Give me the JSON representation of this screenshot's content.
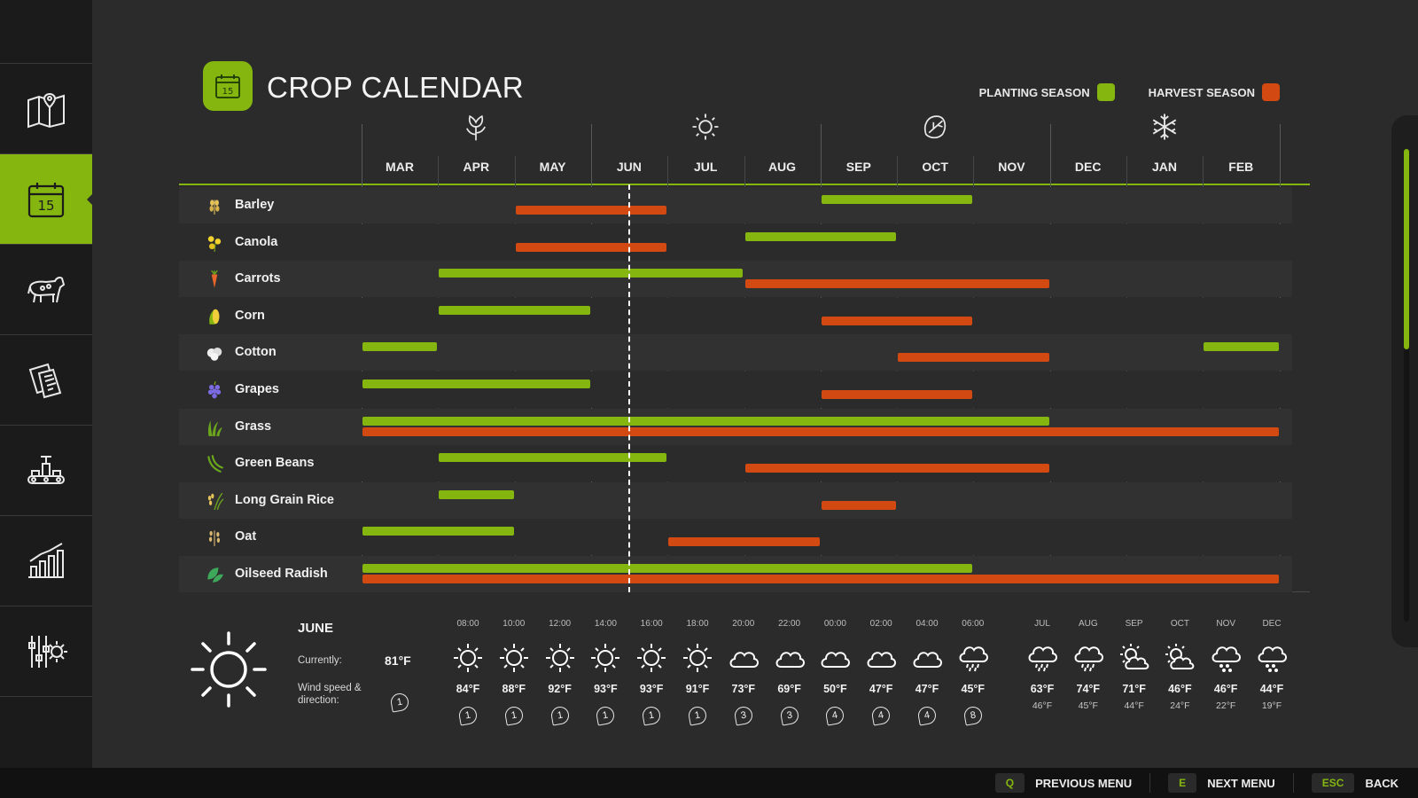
{
  "header": {
    "title": "CROP CALENDAR",
    "logo_day": "15"
  },
  "legend": {
    "planting_label": "PLANTING SEASON",
    "harvest_label": "HARVEST SEASON",
    "planting_color": "#84b60f",
    "harvest_color": "#d24a12"
  },
  "sidebar": {
    "items": [
      {
        "icon": "map-icon"
      },
      {
        "icon": "calendar-icon",
        "active": true,
        "day": "15"
      },
      {
        "icon": "livestock-icon"
      },
      {
        "icon": "contracts-icon"
      },
      {
        "icon": "production-icon"
      },
      {
        "icon": "statistics-icon"
      },
      {
        "icon": "settings-icon"
      }
    ]
  },
  "months": [
    "MAR",
    "APR",
    "MAY",
    "JUN",
    "JUL",
    "AUG",
    "SEP",
    "OCT",
    "NOV",
    "DEC",
    "JAN",
    "FEB"
  ],
  "seasons": [
    {
      "icon": "spring-flower-icon"
    },
    {
      "icon": "summer-sun-icon"
    },
    {
      "icon": "autumn-leaf-icon"
    },
    {
      "icon": "winter-snowflake-icon"
    }
  ],
  "current_month_index": 3.5,
  "crops": [
    {
      "name": "Barley",
      "icon": "barley-icon",
      "planting": [
        [
          6,
          8
        ]
      ],
      "harvest": [
        [
          2,
          4
        ]
      ]
    },
    {
      "name": "Canola",
      "icon": "canola-icon",
      "planting": [
        [
          5,
          7
        ]
      ],
      "harvest": [
        [
          2,
          4
        ]
      ]
    },
    {
      "name": "Carrots",
      "icon": "carrot-icon",
      "planting": [
        [
          1,
          5
        ]
      ],
      "harvest": [
        [
          5,
          9
        ]
      ]
    },
    {
      "name": "Corn",
      "icon": "corn-icon",
      "planting": [
        [
          1,
          3
        ]
      ],
      "harvest": [
        [
          6,
          8
        ]
      ]
    },
    {
      "name": "Cotton",
      "icon": "cotton-icon",
      "planting": [
        [
          0,
          1
        ],
        [
          11,
          12
        ]
      ],
      "harvest": [
        [
          7,
          9
        ]
      ]
    },
    {
      "name": "Grapes",
      "icon": "grapes-icon",
      "planting": [
        [
          0,
          3
        ]
      ],
      "harvest": [
        [
          6,
          8
        ]
      ]
    },
    {
      "name": "Grass",
      "icon": "grass-icon",
      "planting": [
        [
          0,
          9
        ]
      ],
      "harvest": [
        [
          0,
          12
        ]
      ]
    },
    {
      "name": "Green Beans",
      "icon": "green-beans-icon",
      "planting": [
        [
          1,
          4
        ]
      ],
      "harvest": [
        [
          5,
          9
        ]
      ]
    },
    {
      "name": "Long Grain Rice",
      "icon": "rice-icon",
      "planting": [
        [
          1,
          2
        ]
      ],
      "harvest": [
        [
          6,
          7
        ]
      ]
    },
    {
      "name": "Oat",
      "icon": "oat-icon",
      "planting": [
        [
          0,
          2
        ]
      ],
      "harvest": [
        [
          4,
          6
        ]
      ]
    },
    {
      "name": "Oilseed Radish",
      "icon": "oilseed-radish-icon",
      "planting": [
        [
          0,
          8
        ]
      ],
      "harvest": [
        [
          0,
          12
        ]
      ]
    }
  ],
  "weather": {
    "month": "JUNE",
    "currently_label": "Currently:",
    "current_temp": "81°F",
    "wind_label_1": "Wind speed &",
    "wind_label_2": "direction:",
    "current_wind": "1",
    "hourly": [
      {
        "time": "08:00",
        "icon": "sun",
        "temp": "84°F",
        "wind": "1"
      },
      {
        "time": "10:00",
        "icon": "sun",
        "temp": "88°F",
        "wind": "1"
      },
      {
        "time": "12:00",
        "icon": "sun",
        "temp": "92°F",
        "wind": "1"
      },
      {
        "time": "14:00",
        "icon": "sun",
        "temp": "93°F",
        "wind": "1"
      },
      {
        "time": "16:00",
        "icon": "sun",
        "temp": "93°F",
        "wind": "1"
      },
      {
        "time": "18:00",
        "icon": "sun",
        "temp": "91°F",
        "wind": "1"
      },
      {
        "time": "20:00",
        "icon": "cloud",
        "temp": "73°F",
        "wind": "3"
      },
      {
        "time": "22:00",
        "icon": "cloud",
        "temp": "69°F",
        "wind": "3"
      },
      {
        "time": "00:00",
        "icon": "cloud",
        "temp": "50°F",
        "wind": "4"
      },
      {
        "time": "02:00",
        "icon": "cloud",
        "temp": "47°F",
        "wind": "4"
      },
      {
        "time": "04:00",
        "icon": "cloud",
        "temp": "47°F",
        "wind": "4"
      },
      {
        "time": "06:00",
        "icon": "rain",
        "temp": "45°F",
        "wind": "8"
      }
    ],
    "monthly": [
      {
        "month": "JUL",
        "icon": "rain",
        "high": "63°F",
        "low": "46°F"
      },
      {
        "month": "AUG",
        "icon": "rain",
        "high": "74°F",
        "low": "45°F"
      },
      {
        "month": "SEP",
        "icon": "partly",
        "high": "71°F",
        "low": "44°F"
      },
      {
        "month": "OCT",
        "icon": "partly",
        "high": "46°F",
        "low": "24°F"
      },
      {
        "month": "NOV",
        "icon": "snow",
        "high": "46°F",
        "low": "22°F"
      },
      {
        "month": "DEC",
        "icon": "snow",
        "high": "44°F",
        "low": "19°F"
      }
    ]
  },
  "footer": {
    "prev_key": "Q",
    "prev_label": "PREVIOUS MENU",
    "next_key": "E",
    "next_label": "NEXT MENU",
    "back_key": "ESC",
    "back_label": "BACK"
  }
}
